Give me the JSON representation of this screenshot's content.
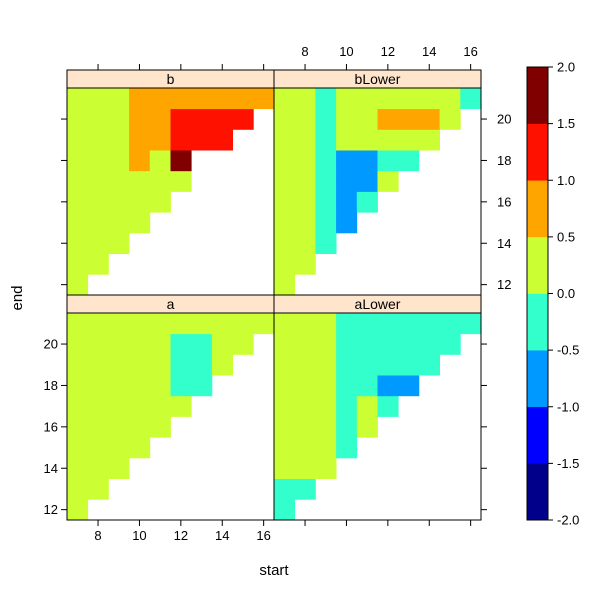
{
  "chart_data": {
    "type": "heatmap",
    "xlabel": "start",
    "ylabel": "end",
    "x_range": [
      6.5,
      16.5
    ],
    "y_range": [
      11.5,
      21.5
    ],
    "x_ticks": [
      8,
      10,
      12,
      14,
      16
    ],
    "y_ticks": [
      12,
      14,
      16,
      18,
      20
    ],
    "colorkey": {
      "breaks": [
        -2.0,
        -1.5,
        -1.0,
        -0.5,
        0.0,
        0.5,
        1.0,
        1.5,
        2.0
      ],
      "tick_labels": [
        "-2.0",
        "-1.5",
        "-1.0",
        "-0.5",
        "0.0",
        "0.5",
        "1.0",
        "1.5",
        "2.0"
      ],
      "colors": [
        "#00008B",
        "#0000FF",
        "#0099FF",
        "#33FFCC",
        "#CCFF33",
        "#FFA500",
        "#FF1100",
        "#800000"
      ]
    },
    "panels": [
      {
        "name": "b",
        "cells": [
          [
            7,
            12,
            0.2
          ],
          [
            7,
            13,
            0.2
          ],
          [
            8,
            13,
            0.2
          ],
          [
            7,
            14,
            0.2
          ],
          [
            8,
            14,
            0.2
          ],
          [
            9,
            14,
            0.2
          ],
          [
            7,
            15,
            0.2
          ],
          [
            8,
            15,
            0.2
          ],
          [
            9,
            15,
            0.2
          ],
          [
            10,
            15,
            0.2
          ],
          [
            7,
            16,
            0.2
          ],
          [
            8,
            16,
            0.2
          ],
          [
            9,
            16,
            0.2
          ],
          [
            10,
            16,
            0.2
          ],
          [
            11,
            16,
            0.2
          ],
          [
            7,
            17,
            0.2
          ],
          [
            8,
            17,
            0.2
          ],
          [
            9,
            17,
            0.2
          ],
          [
            10,
            17,
            0.2
          ],
          [
            11,
            17,
            0.2
          ],
          [
            12,
            17,
            0.2
          ],
          [
            7,
            18,
            0.2
          ],
          [
            8,
            18,
            0.2
          ],
          [
            9,
            18,
            0.2
          ],
          [
            10,
            18,
            0.8
          ],
          [
            11,
            18,
            0.2
          ],
          [
            12,
            18,
            1.8
          ],
          [
            7,
            19,
            0.2
          ],
          [
            8,
            19,
            0.2
          ],
          [
            9,
            19,
            0.2
          ],
          [
            10,
            19,
            0.8
          ],
          [
            11,
            19,
            0.8
          ],
          [
            12,
            19,
            1.2
          ],
          [
            13,
            19,
            1.2
          ],
          [
            14,
            19,
            1.2
          ],
          [
            7,
            20,
            0.2
          ],
          [
            8,
            20,
            0.2
          ],
          [
            9,
            20,
            0.2
          ],
          [
            10,
            20,
            0.8
          ],
          [
            11,
            20,
            0.8
          ],
          [
            12,
            20,
            1.2
          ],
          [
            13,
            20,
            1.2
          ],
          [
            14,
            20,
            1.2
          ],
          [
            15,
            20,
            1.2
          ],
          [
            7,
            21,
            0.2
          ],
          [
            8,
            21,
            0.2
          ],
          [
            9,
            21,
            0.2
          ],
          [
            10,
            21,
            0.8
          ],
          [
            11,
            21,
            0.8
          ],
          [
            12,
            21,
            0.8
          ],
          [
            13,
            21,
            0.8
          ],
          [
            14,
            21,
            0.8
          ],
          [
            15,
            21,
            0.8
          ],
          [
            16,
            21,
            0.8
          ]
        ]
      },
      {
        "name": "bLower",
        "cells": [
          [
            7,
            12,
            0.2
          ],
          [
            7,
            13,
            0.2
          ],
          [
            8,
            13,
            0.2
          ],
          [
            7,
            14,
            0.2
          ],
          [
            8,
            14,
            0.2
          ],
          [
            9,
            14,
            -0.2
          ],
          [
            7,
            15,
            0.2
          ],
          [
            8,
            15,
            0.2
          ],
          [
            9,
            15,
            -0.2
          ],
          [
            10,
            15,
            -0.7
          ],
          [
            7,
            16,
            0.2
          ],
          [
            8,
            16,
            0.2
          ],
          [
            9,
            16,
            -0.2
          ],
          [
            10,
            16,
            -0.7
          ],
          [
            11,
            16,
            -0.2
          ],
          [
            7,
            17,
            0.2
          ],
          [
            8,
            17,
            0.2
          ],
          [
            9,
            17,
            -0.2
          ],
          [
            10,
            17,
            -0.7
          ],
          [
            11,
            17,
            -0.7
          ],
          [
            12,
            17,
            0.2
          ],
          [
            7,
            18,
            0.2
          ],
          [
            8,
            18,
            0.2
          ],
          [
            9,
            18,
            -0.2
          ],
          [
            10,
            18,
            -0.7
          ],
          [
            11,
            18,
            -0.7
          ],
          [
            12,
            18,
            -0.2
          ],
          [
            13,
            18,
            -0.2
          ],
          [
            7,
            19,
            0.2
          ],
          [
            8,
            19,
            0.2
          ],
          [
            9,
            19,
            -0.2
          ],
          [
            10,
            19,
            0.2
          ],
          [
            11,
            19,
            0.2
          ],
          [
            12,
            19,
            0.2
          ],
          [
            13,
            19,
            0.2
          ],
          [
            14,
            19,
            0.2
          ],
          [
            7,
            20,
            0.2
          ],
          [
            8,
            20,
            0.2
          ],
          [
            9,
            20,
            -0.2
          ],
          [
            10,
            20,
            0.2
          ],
          [
            11,
            20,
            0.2
          ],
          [
            12,
            20,
            0.8
          ],
          [
            13,
            20,
            0.8
          ],
          [
            14,
            20,
            0.8
          ],
          [
            15,
            20,
            0.2
          ],
          [
            7,
            21,
            0.2
          ],
          [
            8,
            21,
            0.2
          ],
          [
            9,
            21,
            -0.2
          ],
          [
            10,
            21,
            0.2
          ],
          [
            11,
            21,
            0.2
          ],
          [
            12,
            21,
            0.2
          ],
          [
            13,
            21,
            0.2
          ],
          [
            14,
            21,
            0.2
          ],
          [
            15,
            21,
            0.2
          ],
          [
            16,
            21,
            -0.2
          ]
        ]
      },
      {
        "name": "a",
        "cells": [
          [
            7,
            12,
            0.2
          ],
          [
            7,
            13,
            0.2
          ],
          [
            8,
            13,
            0.2
          ],
          [
            7,
            14,
            0.2
          ],
          [
            8,
            14,
            0.2
          ],
          [
            9,
            14,
            0.2
          ],
          [
            7,
            15,
            0.2
          ],
          [
            8,
            15,
            0.2
          ],
          [
            9,
            15,
            0.2
          ],
          [
            10,
            15,
            0.2
          ],
          [
            7,
            16,
            0.2
          ],
          [
            8,
            16,
            0.2
          ],
          [
            9,
            16,
            0.2
          ],
          [
            10,
            16,
            0.2
          ],
          [
            11,
            16,
            0.2
          ],
          [
            7,
            17,
            0.2
          ],
          [
            8,
            17,
            0.2
          ],
          [
            9,
            17,
            0.2
          ],
          [
            10,
            17,
            0.2
          ],
          [
            11,
            17,
            0.2
          ],
          [
            12,
            17,
            0.2
          ],
          [
            7,
            18,
            0.2
          ],
          [
            8,
            18,
            0.2
          ],
          [
            9,
            18,
            0.2
          ],
          [
            10,
            18,
            0.2
          ],
          [
            11,
            18,
            0.2
          ],
          [
            12,
            18,
            -0.2
          ],
          [
            13,
            18,
            -0.2
          ],
          [
            7,
            19,
            0.2
          ],
          [
            8,
            19,
            0.2
          ],
          [
            9,
            19,
            0.2
          ],
          [
            10,
            19,
            0.2
          ],
          [
            11,
            19,
            0.2
          ],
          [
            12,
            19,
            -0.2
          ],
          [
            13,
            19,
            -0.2
          ],
          [
            14,
            19,
            0.2
          ],
          [
            7,
            20,
            0.2
          ],
          [
            8,
            20,
            0.2
          ],
          [
            9,
            20,
            0.2
          ],
          [
            10,
            20,
            0.2
          ],
          [
            11,
            20,
            0.2
          ],
          [
            12,
            20,
            -0.2
          ],
          [
            13,
            20,
            -0.2
          ],
          [
            14,
            20,
            0.2
          ],
          [
            15,
            20,
            0.2
          ],
          [
            7,
            21,
            0.2
          ],
          [
            8,
            21,
            0.2
          ],
          [
            9,
            21,
            0.2
          ],
          [
            10,
            21,
            0.2
          ],
          [
            11,
            21,
            0.2
          ],
          [
            12,
            21,
            0.2
          ],
          [
            13,
            21,
            0.2
          ],
          [
            14,
            21,
            0.2
          ],
          [
            15,
            21,
            0.2
          ],
          [
            16,
            21,
            0.2
          ]
        ]
      },
      {
        "name": "aLower",
        "cells": [
          [
            7,
            12,
            -0.2
          ],
          [
            7,
            13,
            -0.2
          ],
          [
            8,
            13,
            -0.2
          ],
          [
            7,
            14,
            0.2
          ],
          [
            8,
            14,
            0.2
          ],
          [
            9,
            14,
            0.2
          ],
          [
            7,
            15,
            0.2
          ],
          [
            8,
            15,
            0.2
          ],
          [
            9,
            15,
            0.2
          ],
          [
            10,
            15,
            -0.2
          ],
          [
            7,
            16,
            0.2
          ],
          [
            8,
            16,
            0.2
          ],
          [
            9,
            16,
            0.2
          ],
          [
            10,
            16,
            -0.2
          ],
          [
            11,
            16,
            0.2
          ],
          [
            7,
            17,
            0.2
          ],
          [
            8,
            17,
            0.2
          ],
          [
            9,
            17,
            0.2
          ],
          [
            10,
            17,
            -0.2
          ],
          [
            11,
            17,
            0.2
          ],
          [
            12,
            17,
            -0.2
          ],
          [
            7,
            18,
            0.2
          ],
          [
            8,
            18,
            0.2
          ],
          [
            9,
            18,
            0.2
          ],
          [
            10,
            18,
            -0.2
          ],
          [
            11,
            18,
            -0.2
          ],
          [
            12,
            18,
            -0.7
          ],
          [
            13,
            18,
            -0.7
          ],
          [
            7,
            19,
            0.2
          ],
          [
            8,
            19,
            0.2
          ],
          [
            9,
            19,
            0.2
          ],
          [
            10,
            19,
            -0.2
          ],
          [
            11,
            19,
            -0.2
          ],
          [
            12,
            19,
            -0.2
          ],
          [
            13,
            19,
            -0.2
          ],
          [
            14,
            19,
            -0.2
          ],
          [
            7,
            20,
            0.2
          ],
          [
            8,
            20,
            0.2
          ],
          [
            9,
            20,
            0.2
          ],
          [
            10,
            20,
            -0.2
          ],
          [
            11,
            20,
            -0.2
          ],
          [
            12,
            20,
            -0.2
          ],
          [
            13,
            20,
            -0.2
          ],
          [
            14,
            20,
            -0.2
          ],
          [
            15,
            20,
            -0.2
          ],
          [
            7,
            21,
            0.2
          ],
          [
            8,
            21,
            0.2
          ],
          [
            9,
            21,
            0.2
          ],
          [
            10,
            21,
            -0.2
          ],
          [
            11,
            21,
            -0.2
          ],
          [
            12,
            21,
            -0.2
          ],
          [
            13,
            21,
            -0.2
          ],
          [
            14,
            21,
            -0.2
          ],
          [
            15,
            21,
            -0.2
          ],
          [
            16,
            21,
            -0.2
          ]
        ]
      }
    ]
  }
}
